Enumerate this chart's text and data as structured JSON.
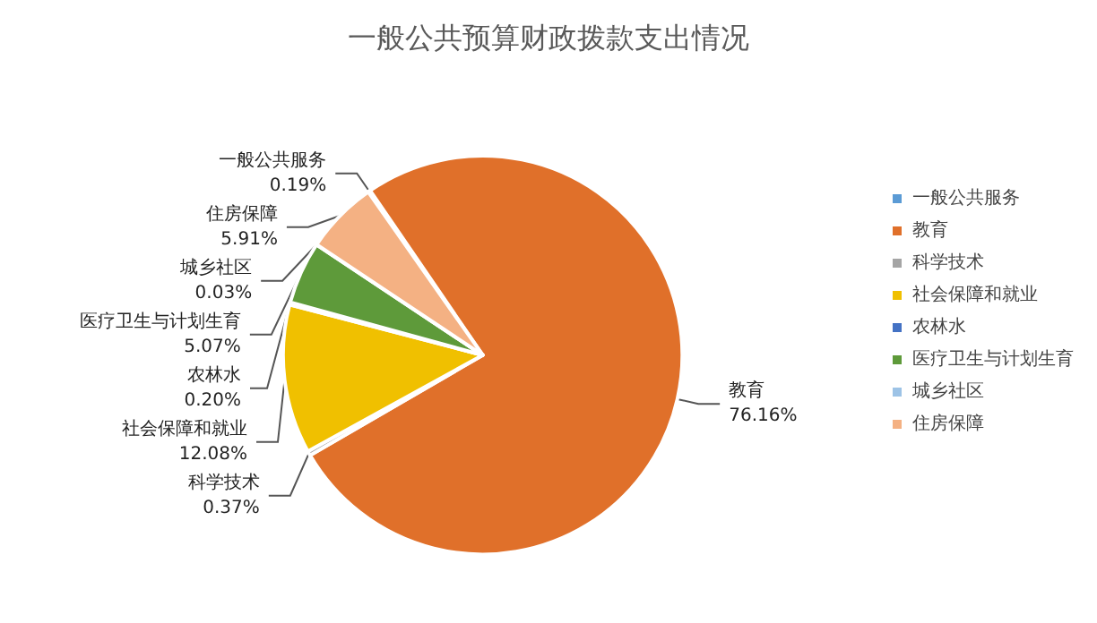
{
  "chart_data": {
    "type": "pie",
    "title": "一般公共预算财政拨款支出情况",
    "categories": [
      "一般公共服务",
      "教育",
      "科学技术",
      "社会保障和就业",
      "农林水",
      "医疗卫生与计划生育",
      "城乡社区",
      "住房保障"
    ],
    "values": [
      0.19,
      76.16,
      0.37,
      12.08,
      0.2,
      5.07,
      0.03,
      5.91
    ],
    "value_labels": [
      "0.19%",
      "76.16%",
      "0.37%",
      "12.08%",
      "0.20%",
      "5.07%",
      "0.03%",
      "5.91%"
    ],
    "colors": [
      "#5b9bd5",
      "#e0702a",
      "#a5a5a5",
      "#f0c000",
      "#4472c4",
      "#5e9a3a",
      "#9dc3e6",
      "#f4b183"
    ],
    "legend": "right"
  }
}
